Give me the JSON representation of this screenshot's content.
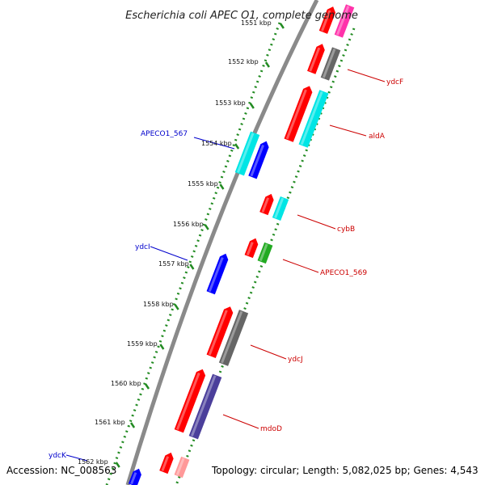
{
  "title": "Escherichia coli APEC O1, complete genome",
  "footer": {
    "accession": "Accession: NC_008563",
    "topology": "Topology: circular; Length: 5,082,025 bp; Genes: 4,543"
  },
  "colors": {
    "backbone": "#8a8a8a",
    "ruler": "#228b22",
    "red": "#ff0000",
    "cyan": "#00e5e5",
    "grey": "#666666",
    "blue": "#0000ff",
    "green": "#22aa22",
    "magenta": "#ff33aa",
    "pink": "#ff9999",
    "darkblue": "#4b3f9b",
    "label_fwd": "#cc0000",
    "label_rev": "#0000cc"
  },
  "ruler_labels": [
    "1551 kbp",
    "1552 kbp",
    "1553 kbp",
    "1554 kbp",
    "1555 kbp",
    "1556 kbp",
    "1557 kbp",
    "1558 kbp",
    "1559 kbp",
    "1560 kbp",
    "1561 kbp",
    "1562 kbp"
  ],
  "gene_labels_forward": [
    "ydcF",
    "aldA",
    "cybB",
    "APECO1_569",
    "ydcJ",
    "mdoD"
  ],
  "gene_labels_reverse": [
    "APECO1_567",
    "ydcI",
    "ydcK"
  ]
}
